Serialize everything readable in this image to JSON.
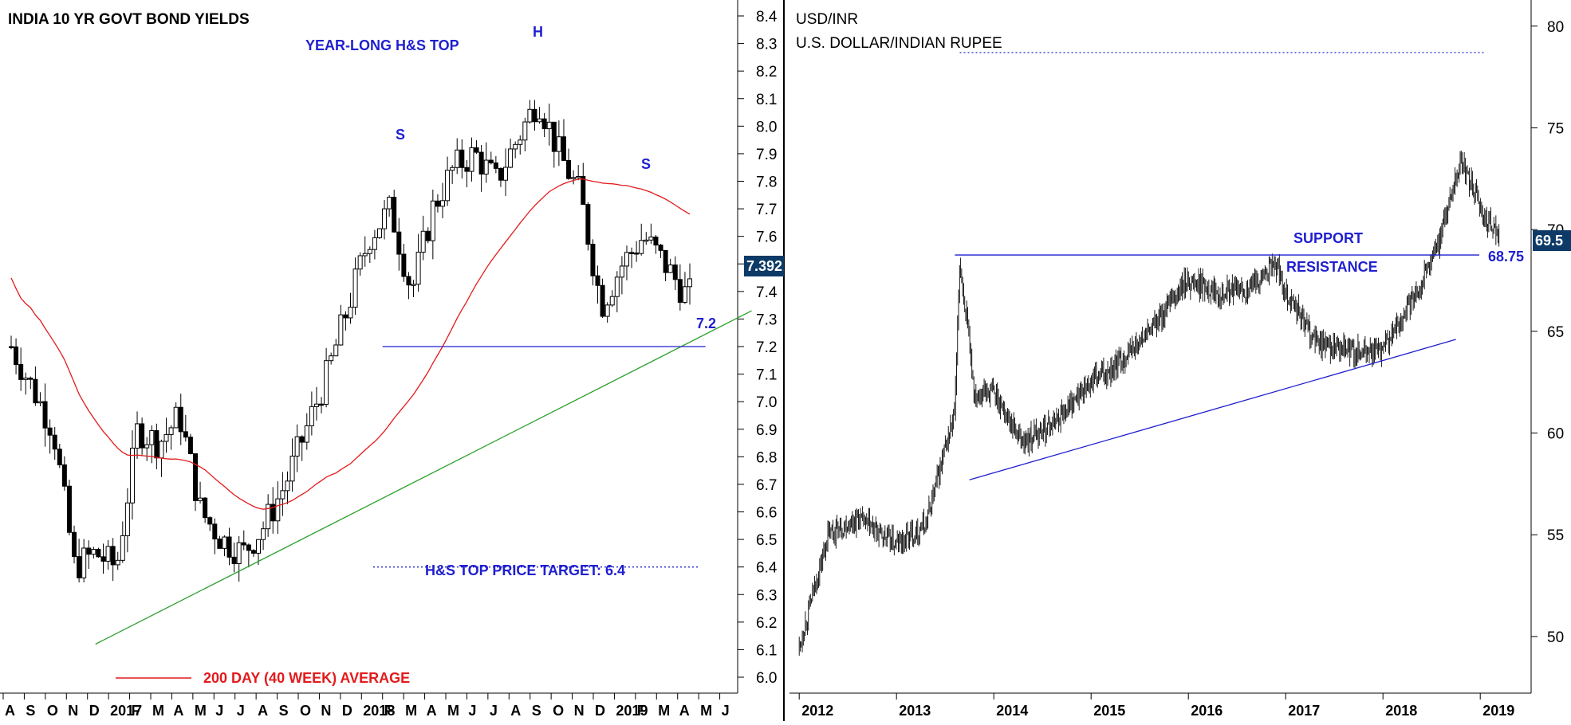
{
  "chart_data": [
    {
      "type": "candlestick",
      "title": "INDIA 10 YR GOVT BOND YIELDS",
      "pattern_label": "YEAR-LONG H&S TOP",
      "ylim": [
        6.0,
        8.4
      ],
      "y_ticks": [
        "8.4",
        "8.3",
        "8.2",
        "8.1",
        "8.0",
        "7.9",
        "7.8",
        "7.7",
        "7.6",
        "7.5",
        "7.4",
        "7.3",
        "7.2",
        "7.1",
        "7.0",
        "6.9",
        "6.8",
        "6.7",
        "6.6",
        "6.5",
        "6.4",
        "6.3",
        "6.2",
        "6.1",
        "6.0"
      ],
      "x_ticks": [
        "A",
        "S",
        "O",
        "N",
        "D",
        "2017",
        "F",
        "M",
        "A",
        "M",
        "J",
        "J",
        "A",
        "S",
        "O",
        "N",
        "D",
        "2018",
        "F",
        "M",
        "A",
        "M",
        "J",
        "J",
        "A",
        "S",
        "O",
        "N",
        "D",
        "2019",
        "F",
        "M",
        "A",
        "M",
        "J"
      ],
      "last_value": "7.392",
      "annotations": [
        {
          "text": "S",
          "x": "Feb 2018",
          "y": 7.85
        },
        {
          "text": "H",
          "x": "Aug 2018",
          "y": 8.35
        },
        {
          "text": "S",
          "x": "Feb 2019",
          "y": 7.75
        }
      ],
      "neckline": {
        "label": "7.2",
        "value": 7.2,
        "x_start": "Feb 2018",
        "x_end": "Apr 2019"
      },
      "target": {
        "label": "H&S TOP PRICE TARGET: 6.4",
        "value": 6.4
      },
      "trendline": {
        "x_start": "Dec 2016",
        "y_start": 6.12,
        "x_end": "Jun 2019",
        "y_end": 7.33
      },
      "moving_average": {
        "label": "200 DAY (40 WEEK) AVERAGE",
        "color": "#e31a1c"
      },
      "series": [
        {
          "x": "Aug 2016",
          "close": 7.2
        },
        {
          "x": "Sep 2016",
          "close": 7.05
        },
        {
          "x": "Oct 2016",
          "close": 6.9
        },
        {
          "x": "Nov 2016",
          "close": 6.4
        },
        {
          "x": "Dec 2016",
          "close": 6.45
        },
        {
          "x": "Jan 2017",
          "close": 6.4
        },
        {
          "x": "Feb 2017",
          "close": 6.9
        },
        {
          "x": "Mar 2017",
          "close": 6.85
        },
        {
          "x": "Apr 2017",
          "close": 6.95
        },
        {
          "x": "May 2017",
          "close": 6.6
        },
        {
          "x": "Jun 2017",
          "close": 6.5
        },
        {
          "x": "Jul 2017",
          "close": 6.45
        },
        {
          "x": "Aug 2017",
          "close": 6.55
        },
        {
          "x": "Sep 2017",
          "close": 6.7
        },
        {
          "x": "Oct 2017",
          "close": 6.9
        },
        {
          "x": "Nov 2017",
          "close": 7.1
        },
        {
          "x": "Dec 2017",
          "close": 7.35
        },
        {
          "x": "Jan 2018",
          "close": 7.6
        },
        {
          "x": "Feb 2018",
          "close": 7.7
        },
        {
          "x": "Mar 2018",
          "close": 7.4
        },
        {
          "x": "Apr 2018",
          "close": 7.7
        },
        {
          "x": "May 2018",
          "close": 7.85
        },
        {
          "x": "Jun 2018",
          "close": 7.9
        },
        {
          "x": "Jul 2018",
          "close": 7.8
        },
        {
          "x": "Aug 2018",
          "close": 7.95
        },
        {
          "x": "Sep 2018",
          "close": 8.1
        },
        {
          "x": "Oct 2018",
          "close": 7.9
        },
        {
          "x": "Nov 2018",
          "close": 7.75
        },
        {
          "x": "Dec 2018",
          "close": 7.35
        },
        {
          "x": "Jan 2019",
          "close": 7.5
        },
        {
          "x": "Feb 2019",
          "close": 7.6
        },
        {
          "x": "Mar 2019",
          "close": 7.5
        },
        {
          "x": "Apr 2019",
          "close": 7.39
        }
      ]
    },
    {
      "type": "candlestick",
      "title": "USD/INR",
      "subtitle": "U.S. DOLLAR/INDIAN RUPEE",
      "ylim": [
        48,
        80.5
      ],
      "y_ticks": [
        "80",
        "75",
        "70",
        "65",
        "60",
        "55",
        "50"
      ],
      "x_ticks": [
        "2012",
        "2013",
        "2014",
        "2015",
        "2016",
        "2017",
        "2018",
        "2019"
      ],
      "last_value": "69.5",
      "annotations": [
        {
          "text": "SUPPORT"
        },
        {
          "text": "RESISTANCE"
        }
      ],
      "horizontal_line": {
        "label": "68.75",
        "value": 68.75
      },
      "dotted_line": {
        "value": 78.7
      },
      "trendline": {
        "x_start": "2013.75",
        "y_start": 57.7,
        "x_end": "2018.75",
        "y_end": 64.6
      },
      "series": [
        {
          "x": "2012.0",
          "close": 49.5
        },
        {
          "x": "2012.3",
          "close": 55.0
        },
        {
          "x": "2012.6",
          "close": 55.8
        },
        {
          "x": "2013.0",
          "close": 54.5
        },
        {
          "x": "2013.3",
          "close": 55.5
        },
        {
          "x": "2013.6",
          "close": 61.0
        },
        {
          "x": "2013.65",
          "close": 68.5
        },
        {
          "x": "2013.8",
          "close": 62.0
        },
        {
          "x": "2014.0",
          "close": 62.0
        },
        {
          "x": "2014.3",
          "close": 59.5
        },
        {
          "x": "2014.6",
          "close": 60.5
        },
        {
          "x": "2015.0",
          "close": 62.5
        },
        {
          "x": "2015.3",
          "close": 63.5
        },
        {
          "x": "2015.6",
          "close": 65.0
        },
        {
          "x": "2016.0",
          "close": 67.5
        },
        {
          "x": "2016.3",
          "close": 67.0
        },
        {
          "x": "2016.6",
          "close": 67.0
        },
        {
          "x": "2016.9",
          "close": 68.3
        },
        {
          "x": "2017.0",
          "close": 67.0
        },
        {
          "x": "2017.3",
          "close": 64.5
        },
        {
          "x": "2017.6",
          "close": 64.0
        },
        {
          "x": "2018.0",
          "close": 64.0
        },
        {
          "x": "2018.3",
          "close": 66.5
        },
        {
          "x": "2018.55",
          "close": 69.0
        },
        {
          "x": "2018.8",
          "close": 73.5
        },
        {
          "x": "2019.0",
          "close": 71.0
        },
        {
          "x": "2019.2",
          "close": 69.5
        }
      ]
    }
  ]
}
